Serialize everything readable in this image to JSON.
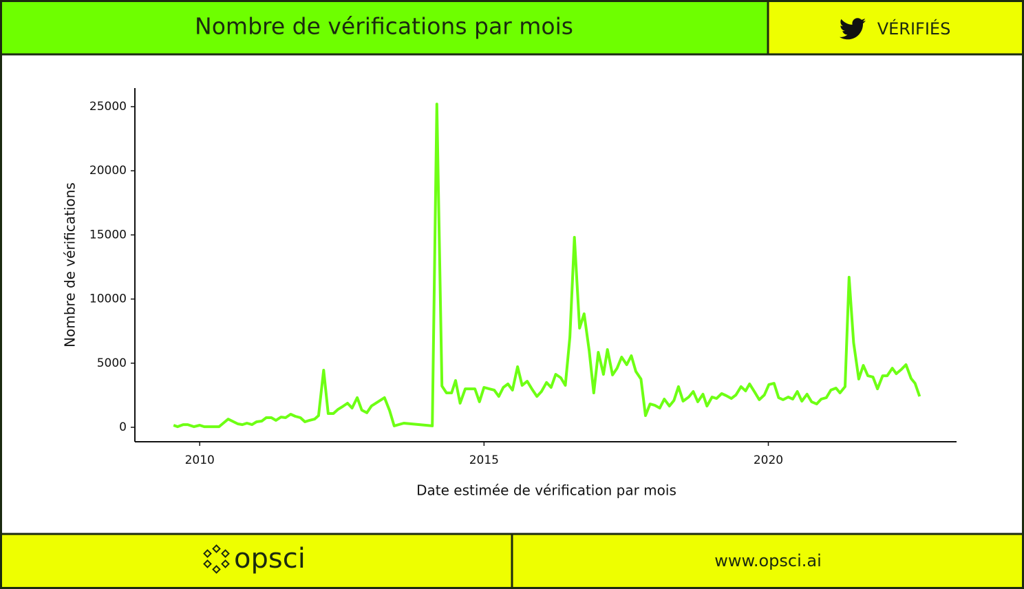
{
  "header": {
    "title": "Nombre de vérifications par mois",
    "badge": "VÉRIFIÉS"
  },
  "footer": {
    "logo": "opsci",
    "url": "www.opsci.ai"
  },
  "chart_data": {
    "type": "line",
    "xlabel": "Date estimée de vérification par mois",
    "ylabel": "Nombre de vérifications",
    "xlim": [
      2008.86,
      2023.31
    ],
    "ylim": [
      -1127,
      26449
    ],
    "xticks": [
      2010,
      2015,
      2020
    ],
    "yticks": [
      0,
      5000,
      10000,
      15000,
      20000,
      25000
    ],
    "series": [
      {
        "name": "Nombre de vérifications",
        "color": "#6eff14",
        "x": [
          2009.54,
          2009.61,
          2009.71,
          2009.79,
          2009.9,
          2010.0,
          2010.08,
          2010.34,
          2010.5,
          2010.67,
          2010.75,
          2010.83,
          2010.92,
          2011.0,
          2011.09,
          2011.17,
          2011.26,
          2011.34,
          2011.43,
          2011.51,
          2011.6,
          2011.68,
          2011.77,
          2011.85,
          2011.93,
          2012.02,
          2012.09,
          2012.18,
          2012.26,
          2012.35,
          2012.43,
          2012.51,
          2012.6,
          2012.68,
          2012.77,
          2012.85,
          2012.94,
          2013.02,
          2013.25,
          2013.34,
          2013.42,
          2013.59,
          2014.09,
          2014.17,
          2014.26,
          2014.34,
          2014.43,
          2014.5,
          2014.58,
          2014.67,
          2014.84,
          2014.92,
          2015.0,
          2015.09,
          2015.18,
          2015.26,
          2015.34,
          2015.42,
          2015.5,
          2015.59,
          2015.67,
          2015.76,
          2015.84,
          2015.93,
          2016.01,
          2016.1,
          2016.18,
          2016.26,
          2016.35,
          2016.43,
          2016.51,
          2016.59,
          2016.68,
          2016.76,
          2016.85,
          2016.93,
          2017.01,
          2017.1,
          2017.17,
          2017.26,
          2017.34,
          2017.42,
          2017.51,
          2017.59,
          2017.67,
          2017.76,
          2017.84,
          2017.92,
          2018.0,
          2018.09,
          2018.17,
          2018.26,
          2018.34,
          2018.42,
          2018.5,
          2018.6,
          2018.68,
          2018.76,
          2018.85,
          2018.92,
          2019.01,
          2019.09,
          2019.18,
          2019.26,
          2019.35,
          2019.43,
          2019.52,
          2019.6,
          2019.67,
          2019.76,
          2019.84,
          2019.93,
          2020.01,
          2020.1,
          2020.18,
          2020.26,
          2020.35,
          2020.43,
          2020.51,
          2020.59,
          2020.68,
          2020.76,
          2020.85,
          2020.93,
          2021.02,
          2021.1,
          2021.19,
          2021.26,
          2021.35,
          2021.42,
          2021.5,
          2021.59,
          2021.67,
          2021.75,
          2021.84,
          2021.92,
          2022.01,
          2022.09,
          2022.18,
          2022.25,
          2022.34,
          2022.42,
          2022.51,
          2022.58,
          2022.66
        ],
        "values": [
          160,
          50,
          210,
          210,
          50,
          160,
          50,
          50,
          640,
          270,
          210,
          320,
          210,
          430,
          480,
          750,
          750,
          540,
          800,
          750,
          1020,
          860,
          750,
          430,
          540,
          640,
          910,
          4450,
          1070,
          1070,
          1390,
          1610,
          1880,
          1500,
          2310,
          1340,
          1130,
          1660,
          2310,
          1290,
          110,
          320,
          110,
          25200,
          3220,
          2680,
          2680,
          3650,
          1880,
          3000,
          3000,
          1990,
          3110,
          3000,
          2900,
          2410,
          3110,
          3380,
          2900,
          4720,
          3270,
          3590,
          3000,
          2410,
          2790,
          3490,
          3110,
          4130,
          3860,
          3270,
          7030,
          14810,
          7730,
          8850,
          5960,
          2680,
          5850,
          4130,
          6060,
          4080,
          4610,
          5470,
          4880,
          5580,
          4350,
          3760,
          910,
          1820,
          1720,
          1500,
          2200,
          1660,
          2090,
          3170,
          2040,
          2360,
          2790,
          1990,
          2580,
          1660,
          2360,
          2250,
          2630,
          2470,
          2250,
          2520,
          3170,
          2840,
          3380,
          2740,
          2150,
          2520,
          3330,
          3430,
          2310,
          2150,
          2360,
          2200,
          2790,
          2040,
          2580,
          1990,
          1820,
          2200,
          2310,
          2900,
          3060,
          2680,
          3170,
          11700,
          6600,
          3760,
          4830,
          4020,
          3920,
          3000,
          4020,
          4020,
          4610,
          4180,
          4510,
          4880,
          3810,
          3430,
          2410
        ]
      }
    ]
  }
}
